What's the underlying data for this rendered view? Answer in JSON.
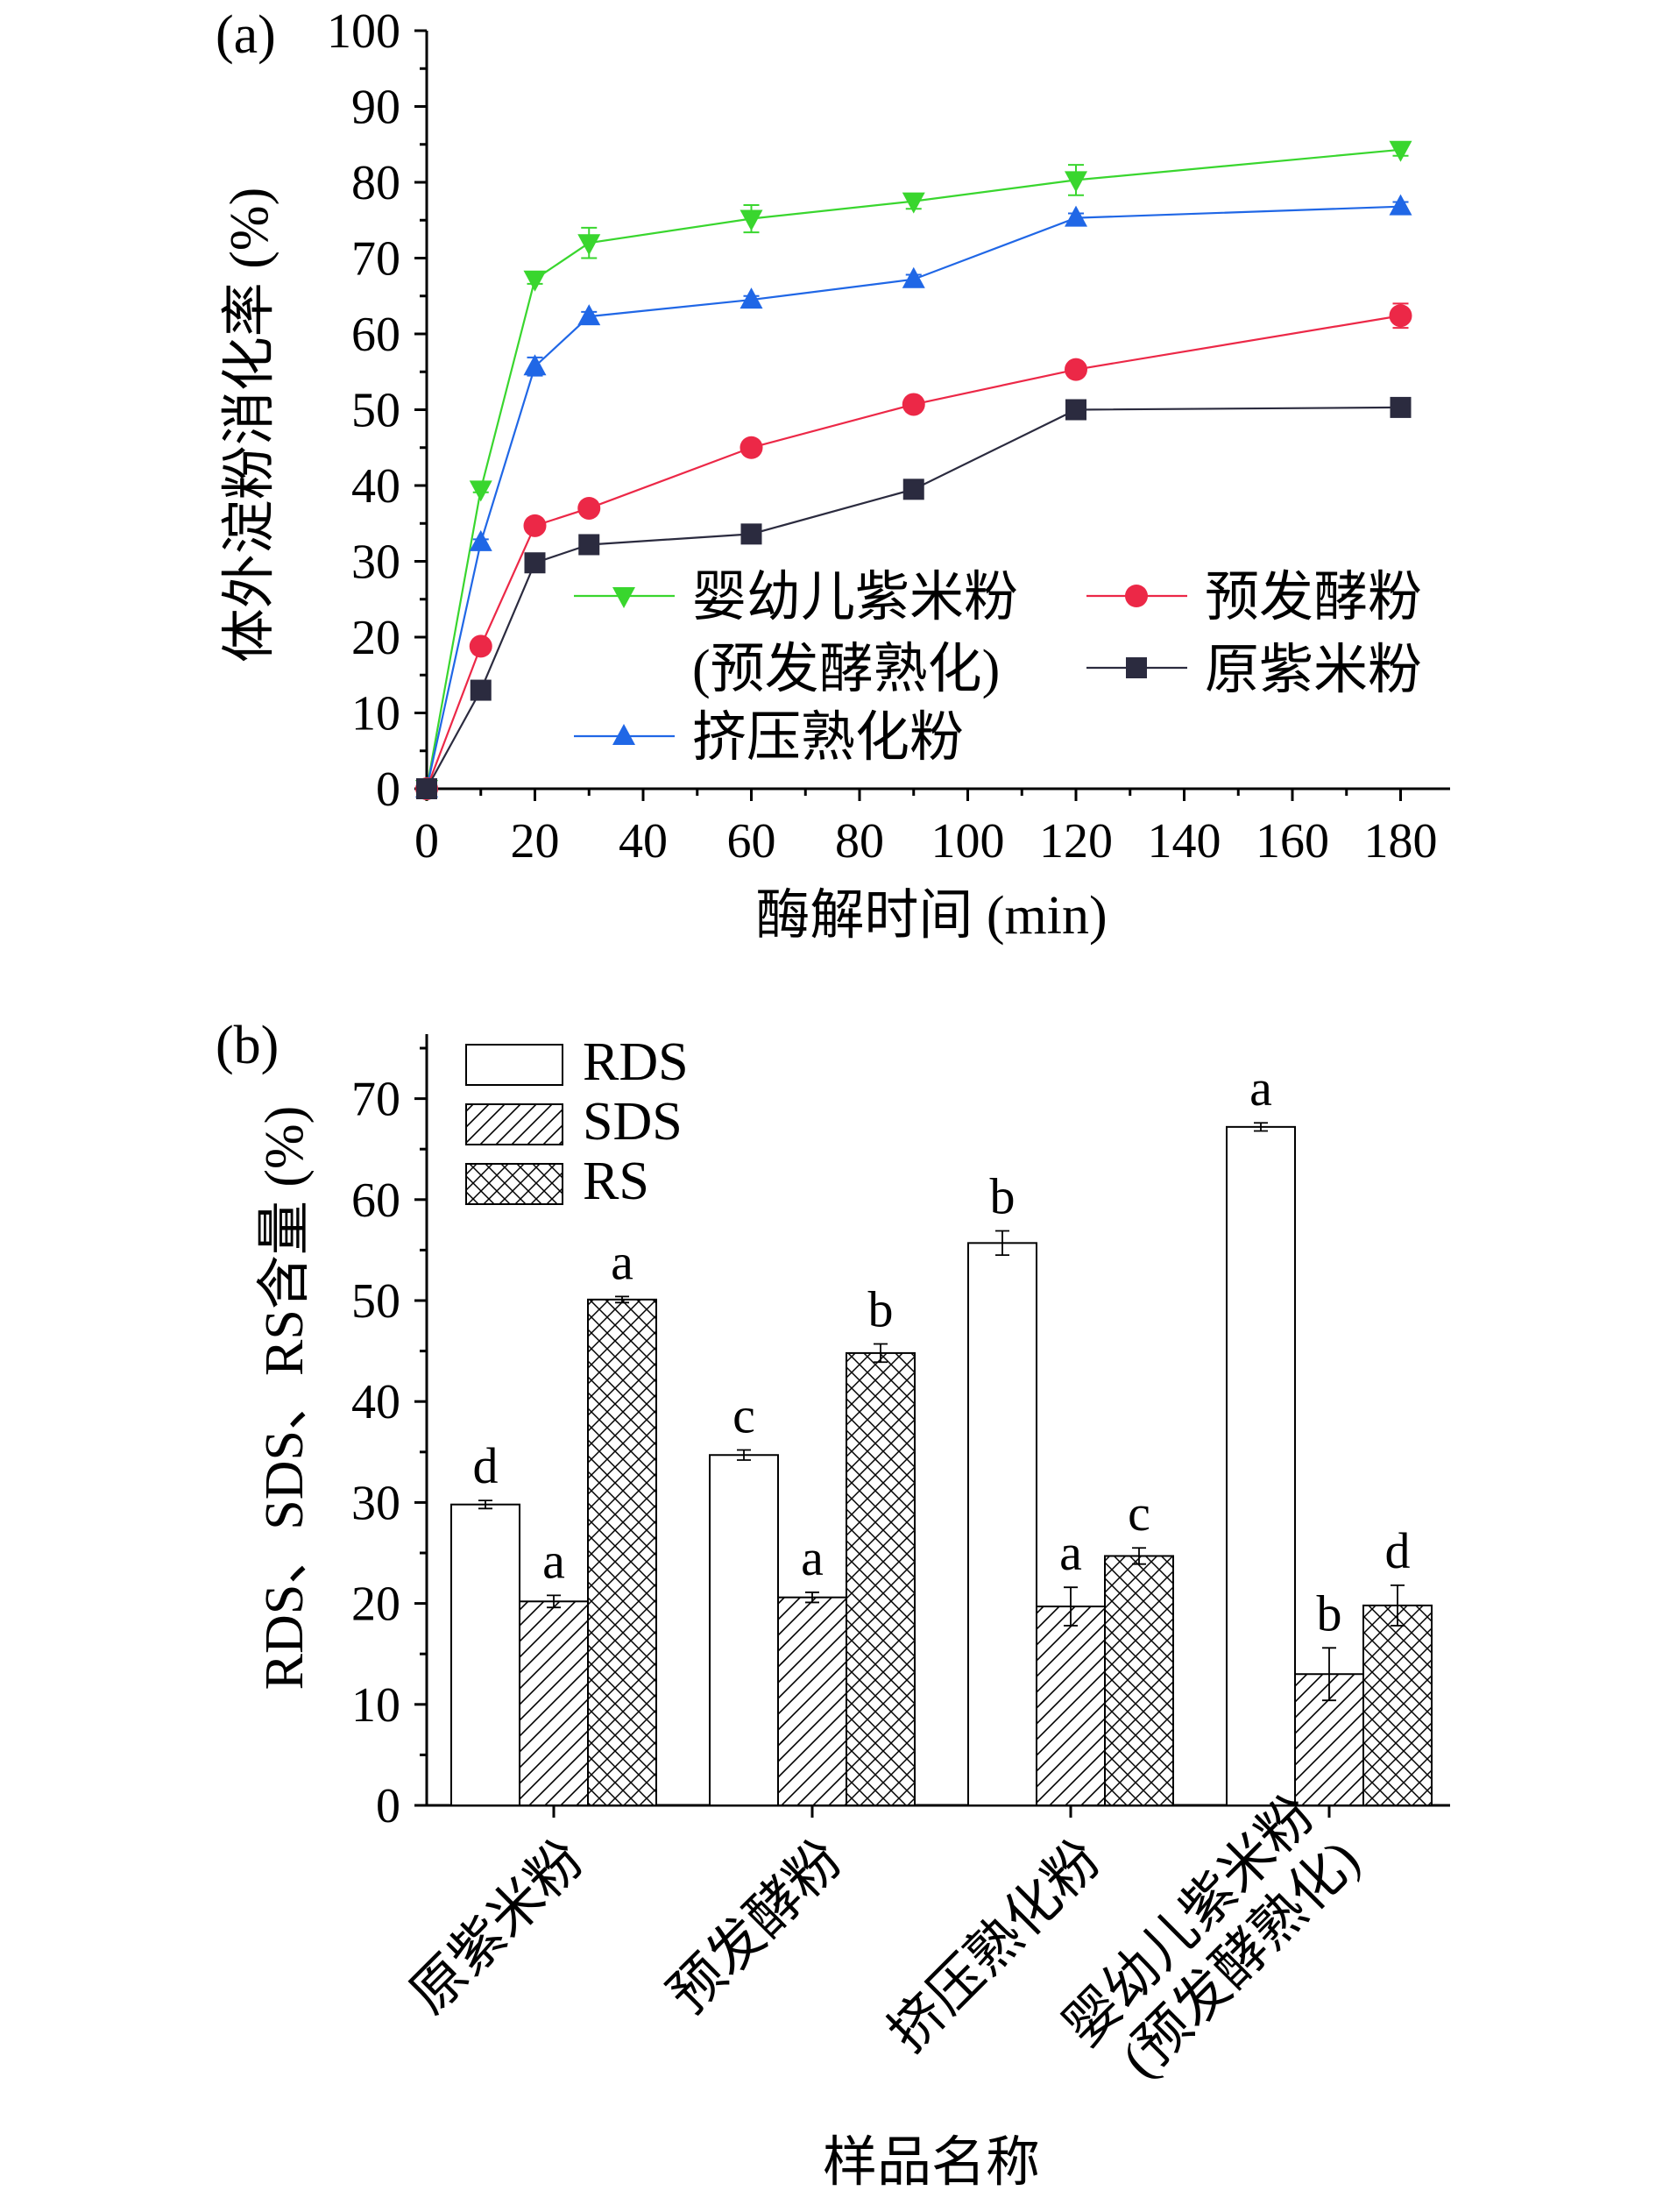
{
  "chart_data": [
    {
      "type": "line",
      "panel_label": "(a)",
      "xlabel": "酶解时间 (min)",
      "ylabel": "体外淀粉消化率 (%)",
      "xlim": [
        0,
        190
      ],
      "ylim": [
        0,
        100
      ],
      "xticks": [
        0,
        20,
        40,
        60,
        80,
        100,
        120,
        140,
        160,
        180
      ],
      "yticks": [
        0,
        10,
        20,
        30,
        40,
        50,
        60,
        70,
        80,
        90,
        100
      ],
      "x": [
        0,
        10,
        20,
        30,
        60,
        90,
        120,
        180
      ],
      "series": [
        {
          "key": "infant",
          "name": "婴幼儿紫米粉\n(预发酵熟化)",
          "name_lines": [
            "婴幼儿紫米粉",
            "(预发酵熟化)"
          ],
          "color": "#39d62e",
          "marker": "triangle-down",
          "values": [
            0,
            39.5,
            67.2,
            72.0,
            75.2,
            77.5,
            80.3,
            84.3
          ],
          "errors": [
            0,
            0.4,
            0.6,
            2.0,
            1.8,
            1.0,
            2.0,
            0.8
          ]
        },
        {
          "key": "extruded",
          "name": "挤压熟化粉",
          "name_lines": [
            "挤压熟化粉"
          ],
          "color": "#2067e6",
          "marker": "triangle-up",
          "values": [
            0,
            32.5,
            55.7,
            62.3,
            64.5,
            67.2,
            75.3,
            76.8
          ],
          "errors": [
            0,
            0.4,
            1.2,
            0.6,
            0.5,
            0.6,
            0.6,
            0.6
          ]
        },
        {
          "key": "prefermented",
          "name": "预发酵粉",
          "name_lines": [
            "预发酵粉"
          ],
          "color": "#ec2847",
          "marker": "circle",
          "values": [
            0,
            18.8,
            34.7,
            37.0,
            45.0,
            50.7,
            55.3,
            62.4
          ],
          "errors": [
            0,
            0.3,
            0.5,
            0.4,
            0.4,
            0.4,
            0.4,
            1.6
          ]
        },
        {
          "key": "raw",
          "name": "原紫米粉",
          "name_lines": [
            "原紫米粉"
          ],
          "color": "#2b2b3f",
          "marker": "square",
          "values": [
            0,
            13.0,
            29.8,
            32.2,
            33.6,
            39.5,
            50.0,
            50.3
          ],
          "errors": [
            0,
            0.3,
            0.4,
            0.4,
            0.4,
            0.4,
            0.4,
            0.4
          ]
        }
      ]
    },
    {
      "type": "bar",
      "panel_label": "(b)",
      "xlabel": "样品名称",
      "ylabel": "RDS、SDS、RS含量 (%)",
      "ylim": [
        0,
        75
      ],
      "yticks": [
        0,
        10,
        20,
        30,
        40,
        50,
        60,
        70
      ],
      "categories": [
        "原紫米粉",
        "预发酵粉",
        "挤压熟化粉",
        "婴幼儿紫米粉\n(预发酵熟化)"
      ],
      "category_lines": [
        [
          "原紫米粉"
        ],
        [
          "预发酵粉"
        ],
        [
          "挤压熟化粉"
        ],
        [
          "婴幼儿紫米粉",
          "(预发酵熟化)"
        ]
      ],
      "series": [
        {
          "name": "RDS",
          "pattern": "none",
          "values": [
            29.8,
            34.7,
            55.7,
            67.2
          ],
          "errors": [
            0.4,
            0.5,
            1.2,
            0.4
          ],
          "letters": [
            "d",
            "c",
            "b",
            "a"
          ]
        },
        {
          "name": "SDS",
          "pattern": "hatch",
          "values": [
            20.2,
            20.6,
            19.7,
            13.0
          ],
          "errors": [
            0.6,
            0.5,
            1.9,
            2.6
          ],
          "letters": [
            "a",
            "a",
            "a",
            "b"
          ]
        },
        {
          "name": "RS",
          "pattern": "cross",
          "values": [
            50.1,
            44.8,
            24.7,
            19.8
          ],
          "errors": [
            0.3,
            0.9,
            0.8,
            2.0
          ],
          "letters": [
            "a",
            "b",
            "c",
            "d"
          ]
        }
      ]
    }
  ]
}
